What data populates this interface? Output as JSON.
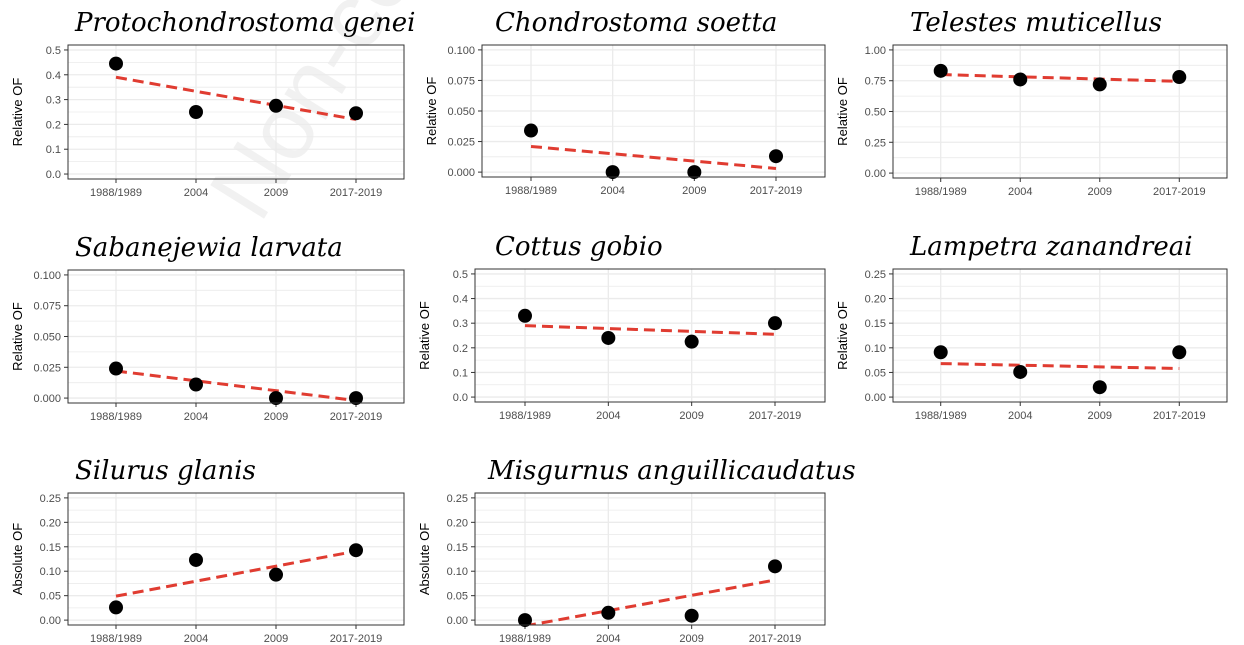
{
  "watermark": "Non-co",
  "chart_data": [
    {
      "type": "scatter",
      "title": "Protochondrostoma genei",
      "ylabel": "Relative OF",
      "xlabel": "",
      "categories": [
        "1988/1989",
        "2004",
        "2009",
        "2017-2019"
      ],
      "values": [
        0.445,
        0.25,
        0.275,
        0.245
      ],
      "trend": [
        0.39,
        0.22
      ],
      "ylim": [
        0,
        0.5
      ],
      "yticks": [
        "0.0",
        "0.1",
        "0.2",
        "0.3",
        "0.4",
        "0.5"
      ],
      "grid": true
    },
    {
      "type": "scatter",
      "title": "Chondrostoma soetta",
      "ylabel": "Relative OF",
      "xlabel": "",
      "categories": [
        "1988/1989",
        "2004",
        "2009",
        "2017-2019"
      ],
      "values": [
        0.034,
        0.0,
        0.0,
        0.013
      ],
      "trend": [
        0.021,
        0.003
      ],
      "ylim": [
        0,
        0.1
      ],
      "yticks": [
        "0.000",
        "0.025",
        "0.050",
        "0.075",
        "0.100"
      ],
      "grid": true
    },
    {
      "type": "scatter",
      "title": "Telestes muticellus",
      "ylabel": "Relative OF",
      "xlabel": "",
      "categories": [
        "1988/1989",
        "2004",
        "2009",
        "2017-2019"
      ],
      "values": [
        0.83,
        0.76,
        0.72,
        0.78
      ],
      "trend": [
        0.8,
        0.745
      ],
      "ylim": [
        0,
        1.0
      ],
      "yticks": [
        "0.00",
        "0.25",
        "0.50",
        "0.75",
        "1.00"
      ],
      "grid": true
    },
    {
      "type": "scatter",
      "title": "Sabanejewia larvata",
      "ylabel": "Relative OF",
      "xlabel": "",
      "categories": [
        "1988/1989",
        "2004",
        "2009",
        "2017-2019"
      ],
      "values": [
        0.024,
        0.011,
        0.0,
        0.0
      ],
      "trend": [
        0.022,
        -0.002
      ],
      "ylim": [
        0,
        0.1
      ],
      "yticks": [
        "0.000",
        "0.025",
        "0.050",
        "0.075",
        "0.100"
      ],
      "grid": true
    },
    {
      "type": "scatter",
      "title": "Cottus gobio",
      "ylabel": "Relative OF",
      "xlabel": "",
      "categories": [
        "1988/1989",
        "2004",
        "2009",
        "2017-2019"
      ],
      "values": [
        0.33,
        0.24,
        0.225,
        0.3
      ],
      "trend": [
        0.29,
        0.255
      ],
      "ylim": [
        0,
        0.5
      ],
      "yticks": [
        "0.0",
        "0.1",
        "0.2",
        "0.3",
        "0.4",
        "0.5"
      ],
      "grid": true
    },
    {
      "type": "scatter",
      "title": "Lampetra zanandreai",
      "ylabel": "Relative OF",
      "xlabel": "",
      "categories": [
        "1988/1989",
        "2004",
        "2009",
        "2017-2019"
      ],
      "values": [
        0.091,
        0.051,
        0.02,
        0.091
      ],
      "trend": [
        0.068,
        0.058
      ],
      "ylim": [
        0,
        0.25
      ],
      "yticks": [
        "0.00",
        "0.05",
        "0.10",
        "0.15",
        "0.20",
        "0.25"
      ],
      "grid": true
    },
    {
      "type": "scatter",
      "title": "Silurus glanis",
      "ylabel": "Absolute OF",
      "xlabel": "",
      "categories": [
        "1988/1989",
        "2004",
        "2009",
        "2017-2019"
      ],
      "values": [
        0.026,
        0.123,
        0.093,
        0.143
      ],
      "trend": [
        0.049,
        0.141
      ],
      "ylim": [
        0,
        0.25
      ],
      "yticks": [
        "0.00",
        "0.05",
        "0.10",
        "0.15",
        "0.20",
        "0.25"
      ],
      "grid": true
    },
    {
      "type": "scatter",
      "title": "Misgurnus anguillicaudatus",
      "ylabel": "Absolute OF",
      "xlabel": "",
      "categories": [
        "1988/1989",
        "2004",
        "2009",
        "2017-2019"
      ],
      "values": [
        0.0,
        0.015,
        0.009,
        0.11
      ],
      "trend": [
        -0.012,
        0.082
      ],
      "ylim": [
        0,
        0.25
      ],
      "yticks": [
        "0.00",
        "0.05",
        "0.10",
        "0.15",
        "0.20",
        "0.25"
      ],
      "grid": true
    }
  ],
  "colors": {
    "points": "#000000",
    "trend": "#e03c31",
    "grid": "#ebebeb",
    "frame": "#333333"
  }
}
